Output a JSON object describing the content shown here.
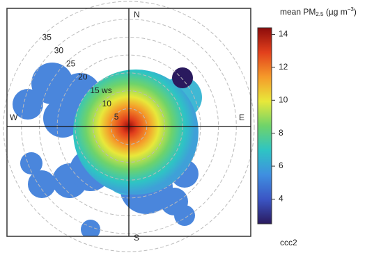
{
  "chart_data": {
    "type": "polar",
    "directions": [
      "N",
      "E",
      "S",
      "W"
    ],
    "rlim": [
      0,
      35
    ],
    "rticks": [
      5,
      10,
      {
        "value": 15,
        "label": "15 ws"
      },
      20,
      25,
      30,
      35
    ],
    "colorbar_title": {
      "main": "mean PM",
      "sub": "2.5",
      "mid": " (µg m",
      "sup": "−3",
      "end": ")"
    },
    "clim": [
      2.5,
      14.4
    ],
    "cticks": [
      4,
      6,
      8,
      10,
      12,
      14
    ],
    "colormap": [
      "#2a1a5e",
      "#3b55c4",
      "#3f8fe0",
      "#2ec4c4",
      "#6fd36a",
      "#e8e83a",
      "#f59a2a",
      "#e2401c",
      "#8c0b0b"
    ],
    "label": "ccc2"
  }
}
